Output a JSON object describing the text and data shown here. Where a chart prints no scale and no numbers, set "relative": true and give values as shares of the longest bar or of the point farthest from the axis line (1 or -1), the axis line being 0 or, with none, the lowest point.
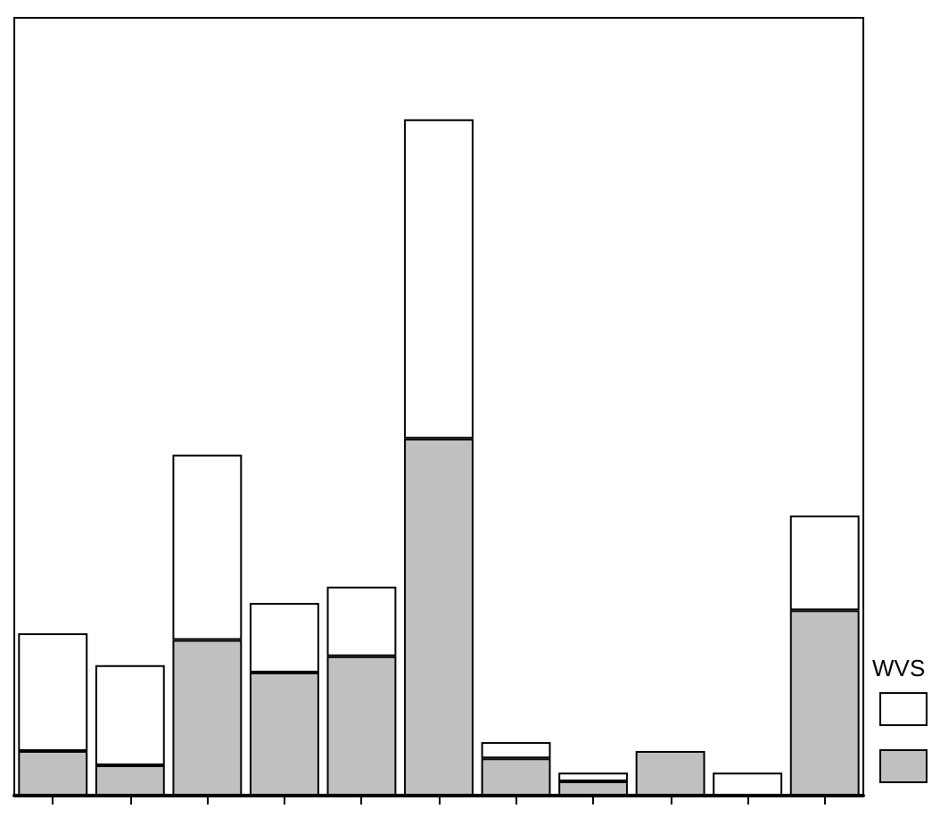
{
  "chart_data": {
    "type": "bar",
    "relative": true,
    "stacked": true,
    "legend_title": "WVS",
    "tick_labels": false,
    "categories": [
      null,
      null,
      null,
      null,
      null,
      null,
      null,
      null,
      null,
      null,
      null
    ],
    "series": [
      {
        "color": "#c0c0c0",
        "values": [
          0.066,
          0.045,
          0.23,
          0.182,
          0.206,
          0.528,
          0.055,
          0.021,
          0.066,
          0,
          0.274
        ]
      },
      {
        "color": "#ffffff",
        "values": [
          0.174,
          0.148,
          0.274,
          0.103,
          0.103,
          0.472,
          0.024,
          0.013,
          0,
          0.034,
          0.14
        ]
      }
    ]
  }
}
